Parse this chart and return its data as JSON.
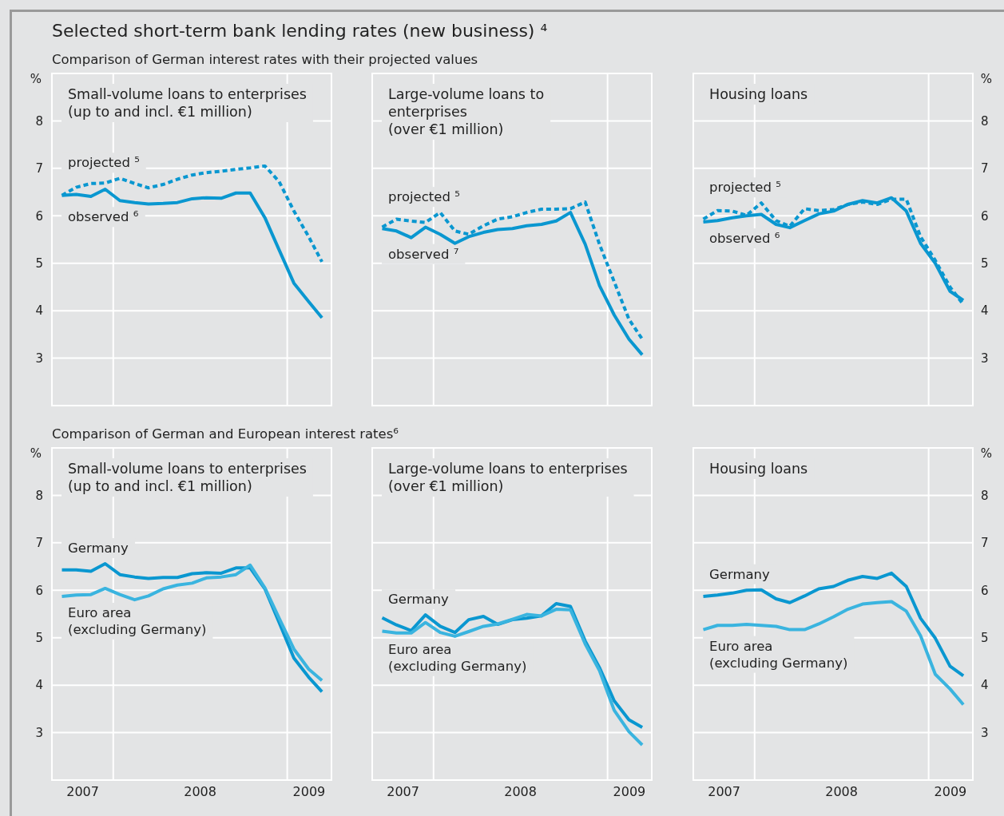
{
  "chart_data": [
    {
      "type": "line",
      "title": "Small-volume loans to enterprises\n(up to and incl. €1 million)",
      "subtitle": "Comparison of German interest rates with their projected values",
      "annotations": [
        "Selected short-term bank lending rates (new business) ⁴"
      ],
      "ylabel": "%",
      "x": [
        "2007-09-15",
        "2007-10-15",
        "2007-11-15",
        "2007-12-15",
        "2008-01-15",
        "2008-02-15",
        "2008-03-15",
        "2008-04-15",
        "2008-05-15",
        "2008-06-15",
        "2008-07-15",
        "2008-08-15",
        "2008-09-15",
        "2008-10-15",
        "2008-11-15",
        "2008-12-15",
        "2009-01-15",
        "2009-02-15",
        "2009-03-15"
      ],
      "xlim": [
        "2007-08-25",
        "2009-04-04"
      ],
      "ylim": [
        2,
        9
      ],
      "yticks": [
        3,
        4,
        5,
        6,
        7,
        8
      ],
      "grid": "y",
      "tick_labels": "y",
      "ref_lines": [
        {
          "axis": "x",
          "value": "2008-01-01",
          "color": "#ffffff"
        },
        {
          "axis": "x",
          "value": "2009-01-01",
          "color": "#ffffff"
        }
      ],
      "series": [
        {
          "name": "projected ⁵",
          "color": "#0a97d0",
          "line_style": "dashed",
          "values": [
            6.43,
            6.6,
            6.68,
            6.69,
            6.79,
            6.68,
            6.59,
            6.66,
            6.77,
            6.86,
            6.91,
            6.94,
            6.98,
            7.01,
            7.05,
            6.72,
            6.1,
            5.56,
            5.03
          ]
        },
        {
          "name": "observed ⁶",
          "color": "#0a97d0",
          "line_style": "solid",
          "values": [
            6.43,
            6.45,
            6.41,
            6.56,
            6.32,
            6.28,
            6.25,
            6.26,
            6.28,
            6.36,
            6.38,
            6.37,
            6.48,
            6.48,
            5.96,
            5.28,
            4.58,
            4.19,
            3.85
          ]
        }
      ]
    },
    {
      "type": "line",
      "title": "Large-volume loans to\nenterprises\n(over €1 million)",
      "x": [
        "2007-09-15",
        "2007-10-15",
        "2007-11-15",
        "2007-12-15",
        "2008-01-15",
        "2008-02-15",
        "2008-03-15",
        "2008-04-15",
        "2008-05-15",
        "2008-06-15",
        "2008-07-15",
        "2008-08-15",
        "2008-09-15",
        "2008-10-15",
        "2008-11-15",
        "2008-12-15",
        "2009-01-15",
        "2009-02-15",
        "2009-03-15"
      ],
      "xlim": [
        "2007-08-25",
        "2009-04-04"
      ],
      "ylim": [
        2,
        9
      ],
      "yticks": [
        3,
        4,
        5,
        6,
        7,
        8
      ],
      "grid": "y",
      "tick_labels": false,
      "ref_lines": [
        {
          "axis": "x",
          "value": "2008-01-01",
          "color": "#ffffff"
        },
        {
          "axis": "x",
          "value": "2009-01-01",
          "color": "#ffffff"
        }
      ],
      "series": [
        {
          "name": "projected ⁵",
          "color": "#0a97d0",
          "line_style": "dashed",
          "values": [
            5.76,
            5.93,
            5.89,
            5.86,
            6.07,
            5.68,
            5.61,
            5.79,
            5.93,
            5.98,
            6.07,
            6.14,
            6.14,
            6.15,
            6.29,
            5.4,
            4.61,
            3.82,
            3.4
          ]
        },
        {
          "name": "observed ⁷",
          "color": "#0a97d0",
          "line_style": "solid",
          "values": [
            5.73,
            5.68,
            5.54,
            5.76,
            5.61,
            5.42,
            5.56,
            5.65,
            5.71,
            5.73,
            5.79,
            5.82,
            5.89,
            6.07,
            5.4,
            4.53,
            3.91,
            3.4,
            3.07
          ]
        }
      ]
    },
    {
      "type": "line",
      "title": "Housing loans",
      "ylabel": "%",
      "x": [
        "2007-09-15",
        "2007-10-15",
        "2007-11-15",
        "2007-12-15",
        "2008-01-15",
        "2008-02-15",
        "2008-03-15",
        "2008-04-15",
        "2008-05-15",
        "2008-06-15",
        "2008-07-15",
        "2008-08-15",
        "2008-09-15",
        "2008-10-15",
        "2008-11-15",
        "2008-12-15",
        "2009-01-15",
        "2009-02-15",
        "2009-03-15"
      ],
      "xlim": [
        "2007-08-25",
        "2009-04-04"
      ],
      "ylim": [
        2,
        9
      ],
      "yticks": [
        3,
        4,
        5,
        6,
        7,
        8
      ],
      "grid": "y",
      "tick_labels": "y",
      "ref_lines": [
        {
          "axis": "x",
          "value": "2008-01-01",
          "color": "#ffffff"
        },
        {
          "axis": "x",
          "value": "2009-01-01",
          "color": "#ffffff"
        }
      ],
      "series": [
        {
          "name": "projected ⁵",
          "color": "#0a97d0",
          "line_style": "dashed",
          "values": [
            5.93,
            6.11,
            6.1,
            6.01,
            6.27,
            5.9,
            5.78,
            6.15,
            6.11,
            6.13,
            6.24,
            6.29,
            6.24,
            6.35,
            6.35,
            5.56,
            5.06,
            4.5,
            4.13
          ]
        },
        {
          "name": "observed ⁶",
          "color": "#0a97d0",
          "line_style": "solid",
          "values": [
            5.87,
            5.9,
            5.96,
            6.0,
            6.03,
            5.82,
            5.75,
            5.9,
            6.04,
            6.1,
            6.24,
            6.32,
            6.27,
            6.38,
            6.1,
            5.42,
            5.0,
            4.41,
            4.22
          ]
        }
      ]
    },
    {
      "type": "line",
      "title": "Small-volume loans to enterprises\n(up to and incl. €1 million)",
      "subtitle": "Comparison of German and European interest rates⁶",
      "ylabel": "%",
      "x": [
        "2007-09-15",
        "2007-10-15",
        "2007-11-15",
        "2007-12-15",
        "2008-01-15",
        "2008-02-15",
        "2008-03-15",
        "2008-04-15",
        "2008-05-15",
        "2008-06-15",
        "2008-07-15",
        "2008-08-15",
        "2008-09-15",
        "2008-10-15",
        "2008-11-15",
        "2008-12-15",
        "2009-01-15",
        "2009-02-15",
        "2009-03-15"
      ],
      "xlim": [
        "2007-08-25",
        "2009-04-04"
      ],
      "xticks": [
        {
          "value": "2007-10-28",
          "label": "2007"
        },
        {
          "value": "2008-07-01",
          "label": "2008"
        },
        {
          "value": "2009-02-15",
          "label": "2009"
        }
      ],
      "ylim": [
        2,
        9
      ],
      "yticks": [
        3,
        4,
        5,
        6,
        7,
        8
      ],
      "grid": "y",
      "ref_lines": [
        {
          "axis": "x",
          "value": "2008-01-01",
          "color": "#ffffff"
        },
        {
          "axis": "x",
          "value": "2009-01-01",
          "color": "#ffffff"
        }
      ],
      "series": [
        {
          "name": "Germany",
          "color": "#0a97d0",
          "line_style": "solid",
          "values": [
            6.43,
            6.43,
            6.4,
            6.56,
            6.33,
            6.28,
            6.25,
            6.27,
            6.27,
            6.35,
            6.37,
            6.36,
            6.47,
            6.47,
            6.03,
            5.32,
            4.57,
            4.17,
            3.86
          ]
        },
        {
          "name": "Euro area\n(excluding Germany)",
          "color": "#3ab4df",
          "line_style": "solid",
          "values": [
            5.87,
            5.9,
            5.91,
            6.04,
            5.91,
            5.8,
            5.88,
            6.03,
            6.11,
            6.15,
            6.26,
            6.28,
            6.33,
            6.53,
            6.05,
            5.41,
            4.76,
            4.34,
            4.1
          ]
        }
      ]
    },
    {
      "type": "line",
      "title": "Large-volume loans to enterprises\n(over €1 million)",
      "x": [
        "2007-09-15",
        "2007-10-15",
        "2007-11-15",
        "2007-12-15",
        "2008-01-15",
        "2008-02-15",
        "2008-03-15",
        "2008-04-15",
        "2008-05-15",
        "2008-06-15",
        "2008-07-15",
        "2008-08-15",
        "2008-09-15",
        "2008-10-15",
        "2008-11-15",
        "2008-12-15",
        "2009-01-15",
        "2009-02-15",
        "2009-03-15"
      ],
      "xlim": [
        "2007-08-25",
        "2009-04-04"
      ],
      "xticks": [
        {
          "value": "2007-10-28",
          "label": "2007"
        },
        {
          "value": "2008-07-01",
          "label": "2008"
        },
        {
          "value": "2009-02-15",
          "label": "2009"
        }
      ],
      "ylim": [
        2,
        9
      ],
      "yticks": [
        3,
        4,
        5,
        6,
        7,
        8
      ],
      "grid": "y",
      "tick_labels": "x",
      "ref_lines": [
        {
          "axis": "x",
          "value": "2008-01-01",
          "color": "#ffffff"
        },
        {
          "axis": "x",
          "value": "2009-01-01",
          "color": "#ffffff"
        }
      ],
      "series": [
        {
          "name": "Germany",
          "color": "#0a97d0",
          "line_style": "solid",
          "values": [
            5.42,
            5.27,
            5.15,
            5.48,
            5.24,
            5.11,
            5.38,
            5.45,
            5.28,
            5.38,
            5.41,
            5.46,
            5.72,
            5.66,
            4.93,
            4.37,
            3.67,
            3.27,
            3.11
          ]
        },
        {
          "name": "Euro area\n(excluding Germany)",
          "color": "#3ab4df",
          "line_style": "solid",
          "values": [
            5.14,
            5.1,
            5.1,
            5.32,
            5.11,
            5.03,
            5.13,
            5.24,
            5.29,
            5.39,
            5.49,
            5.46,
            5.6,
            5.59,
            4.87,
            4.31,
            3.47,
            3.02,
            2.74
          ]
        }
      ]
    },
    {
      "type": "line",
      "title": "Housing loans",
      "ylabel": "%",
      "x": [
        "2007-09-15",
        "2007-10-15",
        "2007-11-15",
        "2007-12-15",
        "2008-01-15",
        "2008-02-15",
        "2008-03-15",
        "2008-04-15",
        "2008-05-15",
        "2008-06-15",
        "2008-07-15",
        "2008-08-15",
        "2008-09-15",
        "2008-10-15",
        "2008-11-15",
        "2008-12-15",
        "2009-01-15",
        "2009-02-15",
        "2009-03-15"
      ],
      "xlim": [
        "2007-08-25",
        "2009-04-04"
      ],
      "xticks": [
        {
          "value": "2007-10-28",
          "label": "2007"
        },
        {
          "value": "2008-07-01",
          "label": "2008"
        },
        {
          "value": "2009-02-15",
          "label": "2009"
        }
      ],
      "ylim": [
        2,
        9
      ],
      "yticks": [
        3,
        4,
        5,
        6,
        7,
        8
      ],
      "grid": "y",
      "ref_lines": [
        {
          "axis": "x",
          "value": "2008-01-01",
          "color": "#ffffff"
        },
        {
          "axis": "x",
          "value": "2009-01-01",
          "color": "#ffffff"
        }
      ],
      "series": [
        {
          "name": "Germany",
          "color": "#0a97d0",
          "line_style": "solid",
          "values": [
            5.87,
            5.9,
            5.94,
            6.0,
            6.01,
            5.82,
            5.74,
            5.88,
            6.03,
            6.08,
            6.21,
            6.29,
            6.25,
            6.36,
            6.08,
            5.41,
            4.99,
            4.4,
            4.2
          ]
        },
        {
          "name": "Euro area\n(excluding Germany)",
          "color": "#3ab4df",
          "line_style": "solid",
          "values": [
            5.17,
            5.26,
            5.26,
            5.28,
            5.26,
            5.24,
            5.17,
            5.17,
            5.29,
            5.44,
            5.6,
            5.71,
            5.74,
            5.76,
            5.56,
            5.04,
            4.23,
            3.92,
            3.59
          ]
        }
      ]
    }
  ]
}
